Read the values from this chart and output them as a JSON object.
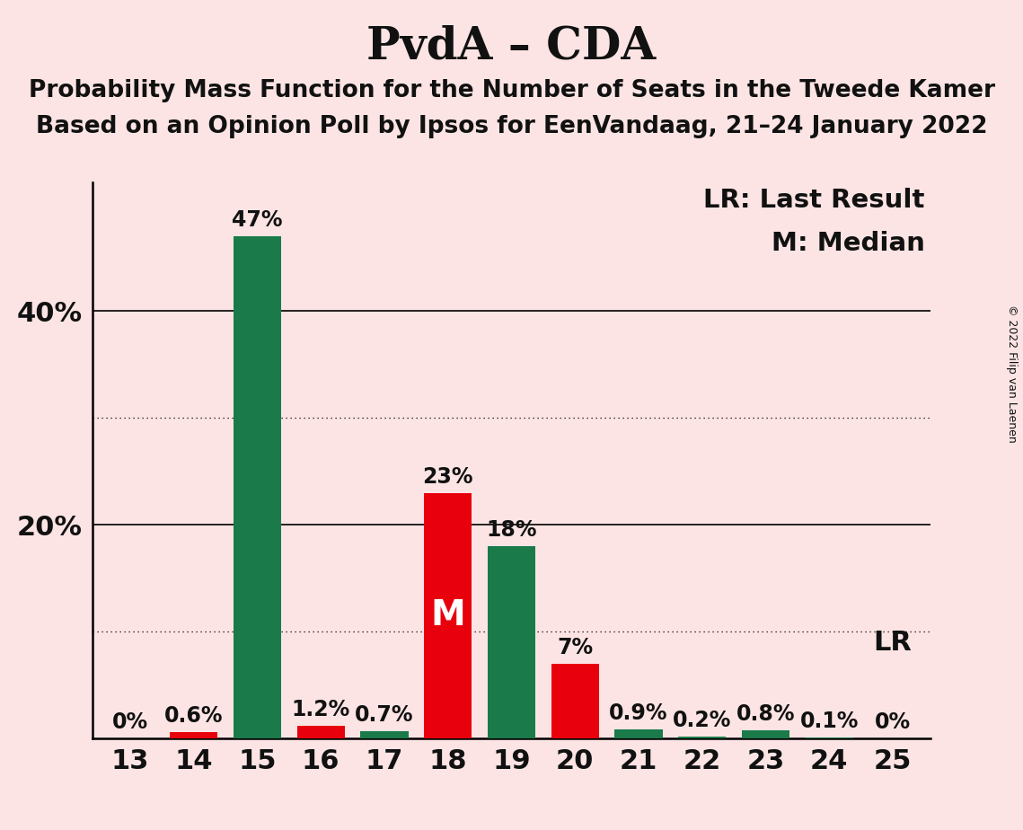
{
  "title": "PvdA – CDA",
  "subtitle1": "Probability Mass Function for the Number of Seats in the Tweede Kamer",
  "subtitle2": "Based on an Opinion Poll by Ipsos for EenVandaag, 21–24 January 2022",
  "copyright": "© 2022 Filip van Laenen",
  "seats": [
    13,
    14,
    15,
    16,
    17,
    18,
    19,
    20,
    21,
    22,
    23,
    24,
    25
  ],
  "values": [
    0.0,
    0.6,
    47.0,
    1.2,
    0.7,
    23.0,
    18.0,
    7.0,
    0.9,
    0.2,
    0.8,
    0.1,
    0.0
  ],
  "labels": [
    "0%",
    "0.6%",
    "47%",
    "1.2%",
    "0.7%",
    "23%",
    "18%",
    "7%",
    "0.9%",
    "0.2%",
    "0.8%",
    "0.1%",
    "0%"
  ],
  "colors": [
    "#1a7a4a",
    "#e8000d",
    "#1a7a4a",
    "#e8000d",
    "#1a7a4a",
    "#e8000d",
    "#1a7a4a",
    "#e8000d",
    "#1a7a4a",
    "#1a7a4a",
    "#1a7a4a",
    "#1a7a4a",
    "#1a7a4a"
  ],
  "median_seat": 18,
  "lr_seat": 24,
  "background_color": "#fce4e4",
  "bar_width": 0.75,
  "ylim": [
    0,
    52
  ],
  "solid_gridlines": [
    20,
    40
  ],
  "dotted_gridlines": [
    10,
    30
  ],
  "ytick_positions": [
    20,
    40
  ],
  "ytick_labels": [
    "20%",
    "40%"
  ],
  "legend_lr": "LR: Last Result",
  "legend_m": "M: Median",
  "lr_label": "LR",
  "m_label": "M",
  "title_fontsize": 36,
  "subtitle_fontsize": 19,
  "label_fontsize": 17,
  "tick_fontsize": 22,
  "legend_fontsize": 21,
  "m_fontsize": 28,
  "lr_annotation_fontsize": 22,
  "copyright_fontsize": 9
}
